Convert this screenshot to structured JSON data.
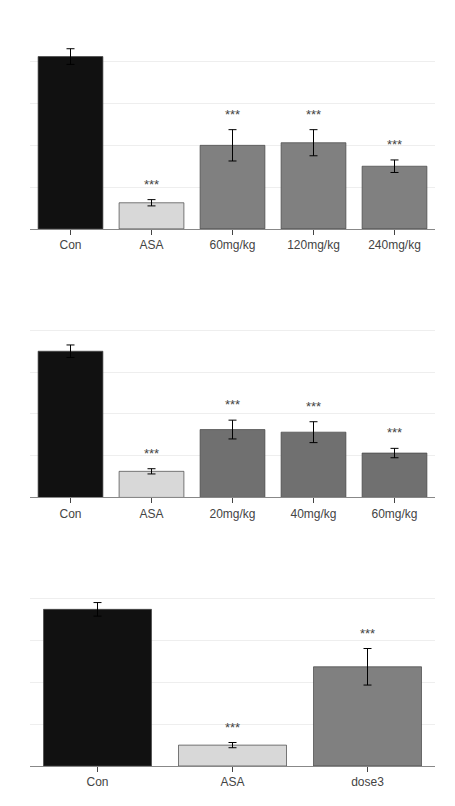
{
  "chart_data": [
    {
      "type": "bar",
      "categories": [
        "Con",
        "ASA",
        "60mg/kg",
        "120mg/kg",
        "240mg/kg"
      ],
      "values": [
        33,
        5,
        16,
        16.5,
        12
      ],
      "errors": [
        1.5,
        0.6,
        3.0,
        2.5,
        1.2
      ],
      "colors": [
        "#111111",
        "#d8d8d8",
        "#808080",
        "#808080",
        "#808080"
      ],
      "annotations": [
        {
          "category": "ASA",
          "text": "***"
        },
        {
          "category": "60mg/kg",
          "text": "***"
        },
        {
          "category": "120mg/kg",
          "text": "***"
        },
        {
          "category": "240mg/kg",
          "text": "***"
        }
      ],
      "ylim": [
        0,
        40
      ],
      "yticks": [
        0,
        8,
        16,
        24,
        32,
        40
      ],
      "grid": true,
      "tick_labels": "x"
    },
    {
      "type": "bar",
      "categories": [
        "Con",
        "ASA",
        "20mg/kg",
        "40mg/kg",
        "60mg/kg"
      ],
      "values": [
        28,
        5,
        13,
        12.5,
        8.5
      ],
      "errors": [
        1.2,
        0.5,
        1.8,
        2.0,
        0.9
      ],
      "colors": [
        "#111111",
        "#d8d8d8",
        "#707070",
        "#707070",
        "#707070"
      ],
      "annotations": [
        {
          "category": "ASA",
          "text": "***"
        },
        {
          "category": "20mg/kg",
          "text": "***"
        },
        {
          "category": "40mg/kg",
          "text": "***"
        },
        {
          "category": "60mg/kg",
          "text": "***"
        }
      ],
      "ylim": [
        0,
        40
      ],
      "yticks": [
        0,
        8,
        16,
        24,
        32,
        40
      ],
      "grid": true,
      "tick_labels": "x"
    },
    {
      "type": "bar",
      "categories": [
        "Con",
        "ASA",
        "dose3"
      ],
      "values": [
        30,
        4,
        19
      ],
      "errors": [
        1.3,
        0.5,
        3.5
      ],
      "colors": [
        "#111111",
        "#d8d8d8",
        "#808080"
      ],
      "annotations": [
        {
          "category": "ASA",
          "text": "***"
        },
        {
          "category": "dose3",
          "text": "***"
        }
      ],
      "ylim": [
        0,
        40
      ],
      "yticks": [
        0,
        8,
        16,
        24,
        32,
        40
      ],
      "grid": true,
      "tick_labels": "x"
    }
  ]
}
